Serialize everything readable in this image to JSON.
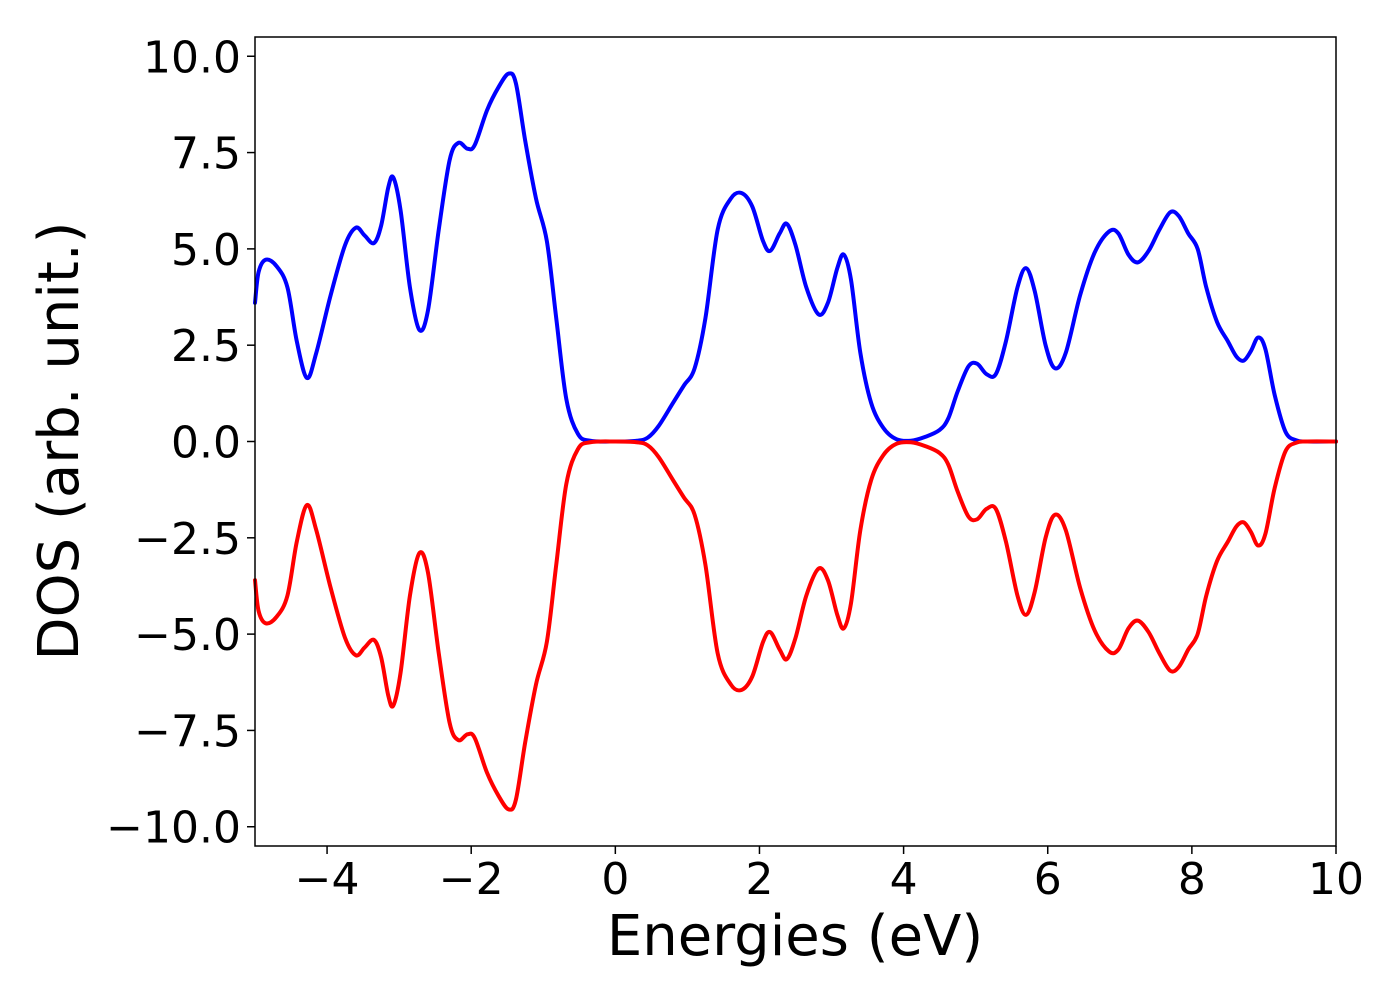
{
  "chart_data": {
    "type": "line",
    "title": "",
    "xlabel": "Energies (eV)",
    "ylabel": "DOS (arb. unit.)",
    "xlim": [
      -5,
      10
    ],
    "ylim": [
      -10.5,
      10.5
    ],
    "xticks": [
      -4,
      -2,
      0,
      2,
      4,
      6,
      8,
      10
    ],
    "xtick_labels": [
      "−4",
      "−2",
      "0",
      "2",
      "4",
      "6",
      "8",
      "10"
    ],
    "yticks": [
      10.0,
      7.5,
      5.0,
      2.5,
      0.0,
      -2.5,
      -5.0,
      -7.5,
      -10.0
    ],
    "ytick_labels": [
      "10.0",
      "7.5",
      "5.0",
      "2.5",
      "0.0",
      "−2.5",
      "−5.0",
      "−7.5",
      "−10.0"
    ],
    "grid": false,
    "legend": "none",
    "series": [
      {
        "color": "#0000ff",
        "points": [
          [
            -5.0,
            3.6
          ],
          [
            -4.95,
            4.4
          ],
          [
            -4.85,
            4.72
          ],
          [
            -4.7,
            4.55
          ],
          [
            -4.55,
            4.0
          ],
          [
            -4.42,
            2.6
          ],
          [
            -4.28,
            1.65
          ],
          [
            -4.15,
            2.3
          ],
          [
            -3.95,
            3.8
          ],
          [
            -3.75,
            5.1
          ],
          [
            -3.6,
            5.55
          ],
          [
            -3.48,
            5.35
          ],
          [
            -3.35,
            5.15
          ],
          [
            -3.25,
            5.6
          ],
          [
            -3.15,
            6.6
          ],
          [
            -3.08,
            6.85
          ],
          [
            -2.98,
            6.0
          ],
          [
            -2.85,
            4.0
          ],
          [
            -2.72,
            2.9
          ],
          [
            -2.6,
            3.4
          ],
          [
            -2.45,
            5.5
          ],
          [
            -2.3,
            7.3
          ],
          [
            -2.18,
            7.75
          ],
          [
            -2.05,
            7.6
          ],
          [
            -1.95,
            7.7
          ],
          [
            -1.78,
            8.6
          ],
          [
            -1.62,
            9.2
          ],
          [
            -1.48,
            9.55
          ],
          [
            -1.38,
            9.3
          ],
          [
            -1.25,
            7.8
          ],
          [
            -1.1,
            6.3
          ],
          [
            -0.95,
            5.2
          ],
          [
            -0.82,
            3.2
          ],
          [
            -0.68,
            1.1
          ],
          [
            -0.52,
            0.2
          ],
          [
            -0.35,
            0.02
          ],
          [
            0.0,
            0.0
          ],
          [
            0.3,
            0.02
          ],
          [
            0.45,
            0.1
          ],
          [
            0.6,
            0.4
          ],
          [
            0.8,
            1.0
          ],
          [
            0.95,
            1.45
          ],
          [
            1.1,
            1.9
          ],
          [
            1.25,
            3.2
          ],
          [
            1.42,
            5.5
          ],
          [
            1.6,
            6.3
          ],
          [
            1.75,
            6.45
          ],
          [
            1.9,
            6.1
          ],
          [
            2.05,
            5.2
          ],
          [
            2.15,
            4.95
          ],
          [
            2.28,
            5.4
          ],
          [
            2.38,
            5.65
          ],
          [
            2.5,
            5.1
          ],
          [
            2.65,
            4.0
          ],
          [
            2.82,
            3.3
          ],
          [
            2.95,
            3.6
          ],
          [
            3.08,
            4.5
          ],
          [
            3.17,
            4.85
          ],
          [
            3.27,
            4.2
          ],
          [
            3.4,
            2.3
          ],
          [
            3.55,
            1.0
          ],
          [
            3.72,
            0.35
          ],
          [
            3.9,
            0.06
          ],
          [
            4.1,
            0.02
          ],
          [
            4.3,
            0.12
          ],
          [
            4.5,
            0.3
          ],
          [
            4.62,
            0.6
          ],
          [
            4.75,
            1.3
          ],
          [
            4.9,
            1.95
          ],
          [
            5.02,
            2.02
          ],
          [
            5.15,
            1.75
          ],
          [
            5.28,
            1.75
          ],
          [
            5.42,
            2.6
          ],
          [
            5.58,
            4.0
          ],
          [
            5.7,
            4.5
          ],
          [
            5.82,
            3.9
          ],
          [
            5.97,
            2.5
          ],
          [
            6.1,
            1.9
          ],
          [
            6.25,
            2.3
          ],
          [
            6.45,
            3.8
          ],
          [
            6.65,
            4.9
          ],
          [
            6.85,
            5.45
          ],
          [
            6.98,
            5.4
          ],
          [
            7.12,
            4.85
          ],
          [
            7.25,
            4.65
          ],
          [
            7.4,
            4.95
          ],
          [
            7.55,
            5.5
          ],
          [
            7.7,
            5.95
          ],
          [
            7.82,
            5.85
          ],
          [
            7.95,
            5.4
          ],
          [
            8.08,
            5.0
          ],
          [
            8.2,
            4.0
          ],
          [
            8.35,
            3.1
          ],
          [
            8.5,
            2.6
          ],
          [
            8.62,
            2.2
          ],
          [
            8.72,
            2.1
          ],
          [
            8.82,
            2.35
          ],
          [
            8.92,
            2.7
          ],
          [
            9.02,
            2.4
          ],
          [
            9.15,
            1.2
          ],
          [
            9.3,
            0.25
          ],
          [
            9.45,
            0.03
          ],
          [
            9.6,
            0.0
          ],
          [
            10.0,
            0.0
          ]
        ]
      },
      {
        "color": "#ff0000",
        "mirror_of_series": 0
      }
    ]
  }
}
